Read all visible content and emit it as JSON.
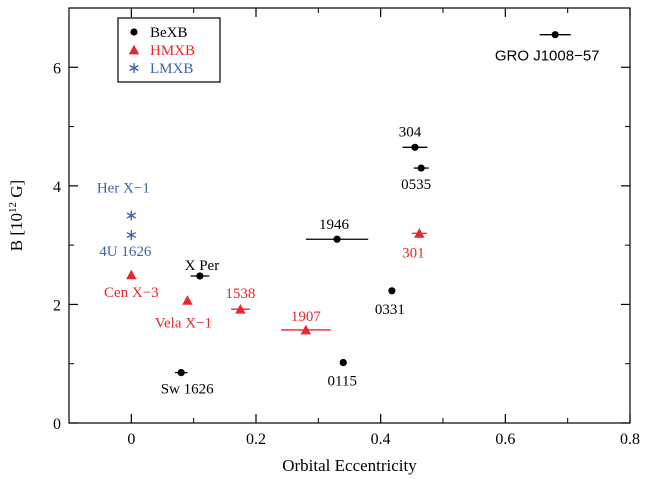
{
  "chart_data": {
    "type": "scatter",
    "xlabel": "Orbital Eccentricity",
    "ylabel": "B [10",
    "ylabel_sup": "12",
    "ylabel_end": " G]",
    "xlim": [
      -0.1,
      0.8
    ],
    "ylim": [
      0,
      7
    ],
    "xticks": [
      0,
      0.2,
      0.4,
      0.6,
      0.8
    ],
    "xtick_labels": [
      "0",
      "0.2",
      "0.4",
      "0.6",
      "0.8"
    ],
    "yticks": [
      0,
      2,
      4,
      6
    ],
    "ytick_labels": [
      "0",
      "2",
      "4",
      "6"
    ],
    "legend_position": "top-left",
    "series": [
      {
        "name": "BeXB",
        "marker": "circle",
        "color": "#000000",
        "points": [
          {
            "label": "GRO J1008−57",
            "x": 0.68,
            "y": 6.55,
            "xerr": 0.025
          },
          {
            "label": "304",
            "x": 0.455,
            "y": 4.65,
            "xerr": 0.02
          },
          {
            "label": "0535",
            "x": 0.465,
            "y": 4.3,
            "xerr": 0.012
          },
          {
            "label": "1946",
            "x": 0.33,
            "y": 3.1,
            "xerr": 0.05
          },
          {
            "label": "0331",
            "x": 0.418,
            "y": 2.23,
            "xerr": 0.005
          },
          {
            "label": "X Per",
            "x": 0.11,
            "y": 2.48,
            "xerr": 0.015
          },
          {
            "label": "0115",
            "x": 0.34,
            "y": 1.02,
            "xerr": 0.0
          },
          {
            "label": "Sw 1626",
            "x": 0.08,
            "y": 0.85,
            "xerr": 0.01
          }
        ]
      },
      {
        "name": "HMXB",
        "marker": "triangle",
        "color": "#e8262b",
        "points": [
          {
            "label": "Cen X−3",
            "x": 0.0,
            "y": 2.5,
            "xerr": 0.0
          },
          {
            "label": "Vela X−1",
            "x": 0.09,
            "y": 2.07,
            "xerr": 0.0
          },
          {
            "label": "1538",
            "x": 0.175,
            "y": 1.92,
            "xerr": 0.015
          },
          {
            "label": "1907",
            "x": 0.28,
            "y": 1.57,
            "xerr": 0.04
          },
          {
            "label": "301",
            "x": 0.462,
            "y": 3.2,
            "xerr": 0.012
          }
        ]
      },
      {
        "name": "LMXB",
        "marker": "asterisk",
        "color": "#3c64b0",
        "points": [
          {
            "label": "Her X−1",
            "x": 0.0,
            "y": 3.5,
            "xerr": 0.0
          },
          {
            "label": "4U 1626",
            "x": 0.0,
            "y": 3.17,
            "xerr": 0.0
          }
        ]
      }
    ]
  }
}
